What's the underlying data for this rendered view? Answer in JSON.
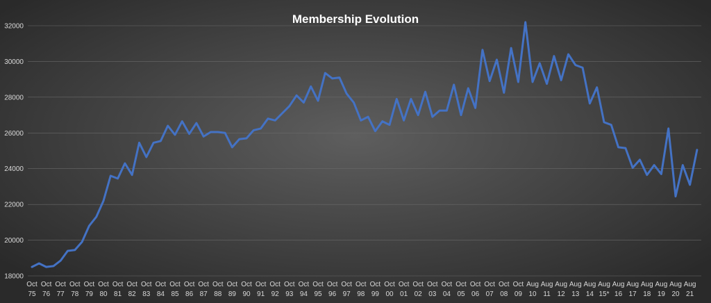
{
  "chart_data": {
    "type": "line",
    "title": "Membership Evolution",
    "categories": [
      "Oct 75",
      null,
      "Oct 76",
      null,
      "Oct 77",
      null,
      "Oct 78",
      null,
      "Oct 79",
      null,
      "Oct 80",
      null,
      "Oct 81",
      null,
      "Oct 82",
      null,
      "Oct 83",
      null,
      "Oct 84",
      null,
      "Oct 85",
      null,
      "Oct 86",
      null,
      "Oct 87",
      null,
      "Oct 88",
      null,
      "Oct 89",
      null,
      "Oct 90",
      null,
      "Oct 91",
      null,
      "Oct 92",
      null,
      "Oct 93",
      null,
      "Oct 94",
      null,
      "Oct 95",
      null,
      "Oct 96",
      null,
      "Oct 97",
      null,
      "Oct 98",
      null,
      "Oct 99",
      null,
      "Oct 00",
      null,
      "Oct 01",
      null,
      "Oct 02",
      null,
      "Oct 03",
      null,
      "Oct 04",
      null,
      "Oct 05",
      null,
      "Oct 06",
      null,
      "Oct 07",
      null,
      "Oct 08",
      null,
      "Oct 09",
      null,
      "Aug 10",
      null,
      "Aug 11",
      null,
      "Aug 12",
      null,
      "Aug 13",
      null,
      "Aug 14",
      null,
      "Aug 15*",
      null,
      "Aug 16",
      null,
      "Aug 17",
      null,
      "Aug 18",
      null,
      "Aug 19",
      null,
      "Aug 20",
      null,
      "Aug 21",
      null
    ],
    "values": [
      18500,
      18700,
      18500,
      18550,
      18850,
      19400,
      19450,
      19900,
      20800,
      21300,
      22200,
      23600,
      23450,
      24300,
      23650,
      25450,
      24650,
      25450,
      25550,
      26400,
      25900,
      26650,
      25950,
      26550,
      25800,
      26050,
      26050,
      26000,
      25200,
      25650,
      25700,
      26150,
      26250,
      26800,
      26700,
      27100,
      27500,
      28100,
      27700,
      28600,
      27800,
      29350,
      29050,
      29100,
      28200,
      27700,
      26700,
      26900,
      26100,
      26650,
      26450,
      27900,
      26700,
      27900,
      27000,
      28300,
      26900,
      27250,
      27250,
      28700,
      27000,
      28500,
      27400,
      30650,
      28900,
      30100,
      28250,
      30750,
      28850,
      32200,
      28850,
      29900,
      28750,
      30300,
      28950,
      30400,
      29800,
      29650,
      27650,
      28550,
      26600,
      26450,
      25200,
      25150,
      24050,
      24500,
      23650,
      24200,
      23700,
      26250,
      22450,
      24200,
      23100,
      25050
    ],
    "color": "#4472c4",
    "ylim": [
      18000,
      32000
    ],
    "yticks": [
      18000,
      20000,
      22000,
      24000,
      26000,
      28000,
      30000,
      32000
    ],
    "grid": true
  }
}
